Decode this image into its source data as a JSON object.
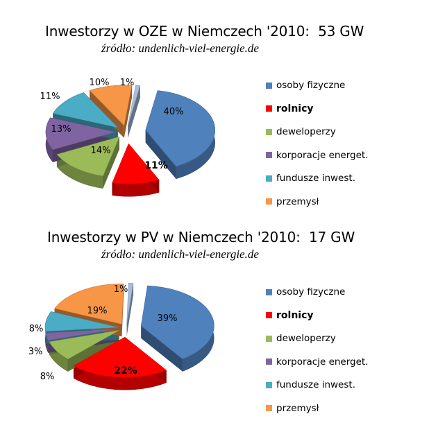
{
  "colors": {
    "osoby": "#4F81BD",
    "rolnicy": "#FF0000",
    "deweloperzy": "#9BBB59",
    "korporacje": "#8064A2",
    "fundusze": "#4BACC6",
    "przemysl": "#F79646",
    "other": "#A6BDDB"
  },
  "chart_data": [
    {
      "type": "pie",
      "title": "Inwestorzy w OZE w Niemczech '2010:  53 GW",
      "subtitle": "źródło: undenlich-viel-energie.de",
      "legend_position": "right",
      "slices": [
        {
          "label": "osoby fizyczne",
          "value": 40,
          "value_label": "40%",
          "color_key": "osoby"
        },
        {
          "label": "rolnicy",
          "value": 11,
          "value_label": "11%",
          "color_key": "rolnicy",
          "bold": true
        },
        {
          "label": "deweloperzy",
          "value": 14,
          "value_label": "14%",
          "color_key": "deweloperzy"
        },
        {
          "label": "korporacje energet.",
          "value": 13,
          "value_label": "13%",
          "color_key": "korporacje"
        },
        {
          "label": "fundusze inwest.",
          "value": 11,
          "value_label": "11%",
          "color_key": "fundusze"
        },
        {
          "label": "przemysł",
          "value": 10,
          "value_label": "10%",
          "color_key": "przemysl"
        },
        {
          "label": "",
          "value": 1,
          "value_label": "1%",
          "color_key": "other"
        }
      ],
      "legend": [
        {
          "label": "osoby fizyczne",
          "color_key": "osoby"
        },
        {
          "label": "rolnicy",
          "color_key": "rolnicy",
          "bold": true
        },
        {
          "label": "deweloperzy",
          "color_key": "deweloperzy"
        },
        {
          "label": "korporacje energet.",
          "color_key": "korporacje"
        },
        {
          "label": "fundusze inwest.",
          "color_key": "fundusze"
        },
        {
          "label": "przemysł",
          "color_key": "przemysl"
        }
      ]
    },
    {
      "type": "pie",
      "title": "Inwestorzy w PV w Niemczech '2010:  17 GW",
      "subtitle": "źródło: undenlich-viel-energie.de",
      "legend_position": "right",
      "slices": [
        {
          "label": "osoby fizyczne",
          "value": 39,
          "value_label": "39%",
          "color_key": "osoby"
        },
        {
          "label": "rolnicy",
          "value": 22,
          "value_label": "22%",
          "color_key": "rolnicy",
          "bold": true
        },
        {
          "label": "deweloperzy",
          "value": 8,
          "value_label": "8%",
          "color_key": "deweloperzy"
        },
        {
          "label": "korporacje energet.",
          "value": 3,
          "value_label": "3%",
          "color_key": "korporacje"
        },
        {
          "label": "fundusze inwest.",
          "value": 8,
          "value_label": "8%",
          "color_key": "fundusze"
        },
        {
          "label": "przemysł",
          "value": 19,
          "value_label": "19%",
          "color_key": "przemysl"
        },
        {
          "label": "",
          "value": 1,
          "value_label": "1%",
          "color_key": "other"
        }
      ],
      "legend": [
        {
          "label": "osoby fizyczne",
          "color_key": "osoby"
        },
        {
          "label": "rolnicy",
          "color_key": "rolnicy",
          "bold": true
        },
        {
          "label": "deweloperzy",
          "color_key": "deweloperzy"
        },
        {
          "label": "korporacje energet.",
          "color_key": "korporacje"
        },
        {
          "label": "fundusze inwest.",
          "color_key": "fundusze"
        },
        {
          "label": "przemysł",
          "color_key": "przemysl"
        }
      ]
    }
  ]
}
